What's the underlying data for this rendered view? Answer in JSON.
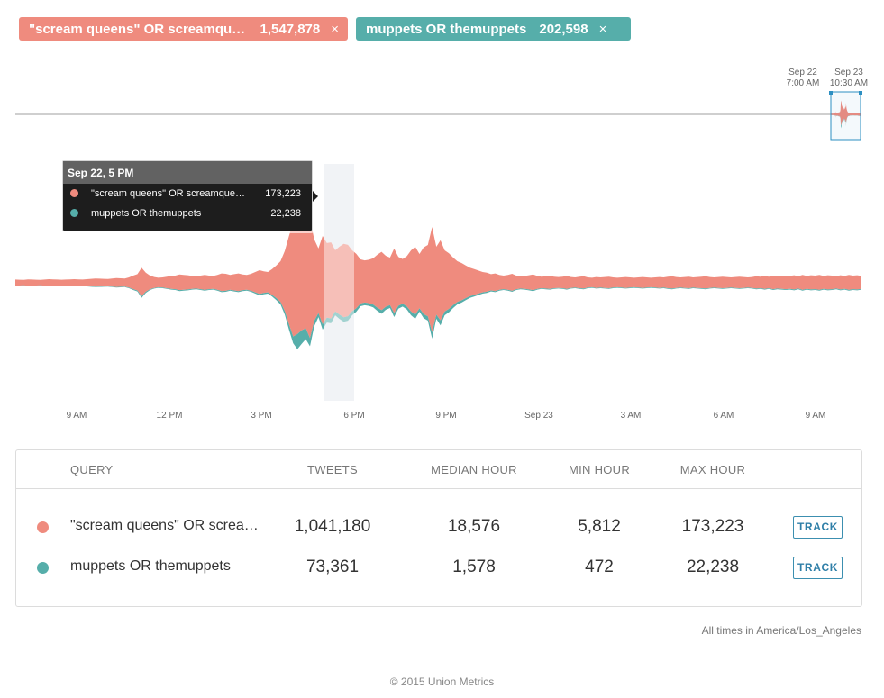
{
  "pills": [
    {
      "query": "\"scream queens\" OR screamqueens",
      "count": "1,547,878",
      "close": "×",
      "color": "#ef8b7e"
    },
    {
      "query": "muppets OR themuppets",
      "count": "202,598",
      "close": "×",
      "color": "#56aeaa"
    }
  ],
  "overview": {
    "marker_start": {
      "line1": "Sep 22",
      "line2": "7:00 AM"
    },
    "marker_end": {
      "line1": "Sep 23",
      "line2": "10:30 AM"
    }
  },
  "tooltip": {
    "title": "Sep 22, 5 PM",
    "rows": [
      {
        "label": "\"scream queens\" OR screamqueens",
        "value": "173,223"
      },
      {
        "label": "muppets OR themuppets",
        "value": "22,238"
      }
    ]
  },
  "chart_data": {
    "type": "area",
    "subtype": "streamgraph",
    "x_ticks": [
      "9 AM",
      "12 PM",
      "3 PM",
      "6 PM",
      "9 PM",
      "Sep 23",
      "3 AM",
      "6 AM",
      "9 AM"
    ],
    "highlight": "Sep 22, 5 PM",
    "series": [
      {
        "name": "\"scream queens\" OR screamqueens",
        "color": "#ef8b7e",
        "values": [
          9000,
          8500,
          8000,
          9500,
          9000,
          8500,
          8000,
          9000,
          10000,
          9500,
          9000,
          8500,
          9000,
          9500,
          10000,
          9500,
          9000,
          10000,
          11000,
          12000,
          11500,
          11000,
          10500,
          12000,
          13000,
          12500,
          12000,
          15000,
          20000,
          24000,
          42000,
          28000,
          20000,
          16000,
          14000,
          15000,
          17000,
          19000,
          20000,
          23000,
          22000,
          21000,
          19000,
          18000,
          20000,
          22000,
          20000,
          19000,
          22000,
          26000,
          25000,
          22000,
          24000,
          26000,
          23000,
          22000,
          25000,
          30000,
          35000,
          32000,
          30000,
          38000,
          48000,
          60000,
          88000,
          130000,
          168000,
          173223,
          160000,
          150000,
          175000,
          120000,
          95000,
          130000,
          110000,
          112000,
          90000,
          100000,
          108000,
          105000,
          90000,
          80000,
          65000,
          62000,
          64000,
          68000,
          78000,
          86000,
          75000,
          70000,
          95000,
          72000,
          66000,
          74000,
          90000,
          100000,
          80000,
          98000,
          105000,
          155000,
          100000,
          118000,
          90000,
          82000,
          70000,
          60000,
          55000,
          48000,
          42000,
          38000,
          34000,
          30000,
          28000,
          24000,
          26000,
          22000,
          20000,
          22000,
          25000,
          20000,
          18000,
          19000,
          21000,
          23000,
          19000,
          17000,
          18000,
          19000,
          17000,
          16000,
          17000,
          19000,
          16000,
          15000,
          17000,
          18000,
          15000,
          14000,
          16000,
          15000,
          16000,
          17000,
          15000,
          14000,
          15000,
          16000,
          15000,
          14000,
          15000,
          16000,
          15000,
          14000,
          15000,
          16000,
          15000,
          17000,
          18000,
          16000,
          15000,
          16000,
          17000,
          15000,
          16000,
          17000,
          18000,
          16000,
          15000,
          16000,
          17000,
          16000,
          15000,
          16000,
          17000,
          16000,
          15000,
          16000,
          18000,
          17000,
          19000,
          17000,
          20000,
          18000,
          19000,
          20000,
          19000,
          21000,
          18000,
          22000,
          19000,
          21000,
          20000,
          22000,
          19000,
          21000,
          20000,
          18000,
          21000,
          19000,
          22000,
          20000,
          21000,
          19000
        ]
      },
      {
        "name": "muppets OR themuppets",
        "color": "#56aeaa",
        "values": [
          600,
          550,
          520,
          600,
          580,
          550,
          520,
          580,
          650,
          600,
          580,
          550,
          580,
          600,
          650,
          620,
          580,
          650,
          700,
          750,
          720,
          700,
          680,
          750,
          800,
          780,
          750,
          900,
          1200,
          1500,
          2500,
          1700,
          1200,
          1000,
          900,
          950,
          1050,
          1150,
          1250,
          1400,
          1350,
          1300,
          1200,
          1150,
          1250,
          1350,
          1250,
          1200,
          1350,
          1550,
          1500,
          1350,
          1450,
          1550,
          1400,
          1350,
          1500,
          1800,
          2100,
          1950,
          1800,
          2300,
          2900,
          3600,
          5300,
          7800,
          10000,
          22238,
          20000,
          16000,
          12000,
          8000,
          6000,
          8000,
          7000,
          7000,
          5600,
          6200,
          6700,
          6500,
          5600,
          5000,
          4000,
          3900,
          4000,
          4200,
          4800,
          5300,
          4600,
          4300,
          5800,
          4400,
          4100,
          4600,
          5500,
          6100,
          4900,
          6000,
          6400,
          9300,
          6100,
          7200,
          5500,
          5000,
          4300,
          3700,
          3400,
          3000,
          2600,
          2300,
          2100,
          1900,
          1700,
          1500,
          1600,
          1400,
          1250,
          1350,
          1500,
          1250,
          1100,
          1150,
          1300,
          1400,
          1150,
          1050,
          1100,
          1150,
          1050,
          1000,
          1050,
          1150,
          1000,
          950,
          1050,
          1100,
          950,
          900,
          1000,
          950,
          1000,
          1050,
          950,
          900,
          950,
          1000,
          950,
          900,
          950,
          1000,
          950,
          900,
          950,
          1000,
          950,
          1050,
          1100,
          1000,
          950,
          1000,
          1050,
          950,
          1000,
          1050,
          1100,
          1000,
          950,
          1000,
          1050,
          1000,
          950,
          1000,
          1050,
          1000,
          950,
          1000,
          1100,
          1050,
          1150,
          1050,
          1200,
          1100,
          1150,
          1200,
          1150,
          1250,
          1100,
          1300,
          1150,
          1250,
          1200,
          1300,
          1150,
          1250,
          1200,
          1100,
          1250,
          1150,
          1300,
          1200,
          1250,
          1150
        ]
      }
    ]
  },
  "table": {
    "headers": [
      "QUERY",
      "TWEETS",
      "MEDIAN HOUR",
      "MIN HOUR",
      "MAX HOUR"
    ],
    "rows": [
      {
        "query": "\"scream queens\" OR screamqueens",
        "tweets": "1,041,180",
        "median": "18,576",
        "min": "5,812",
        "max": "173,223",
        "action": "TRACK",
        "color": "#ef8b7e"
      },
      {
        "query": "muppets OR themuppets",
        "tweets": "73,361",
        "median": "1,578",
        "min": "472",
        "max": "22,238",
        "action": "TRACK",
        "color": "#56aeaa"
      }
    ]
  },
  "timezone_note": "All times in America/Los_Angeles",
  "footer": "© 2015 Union Metrics"
}
